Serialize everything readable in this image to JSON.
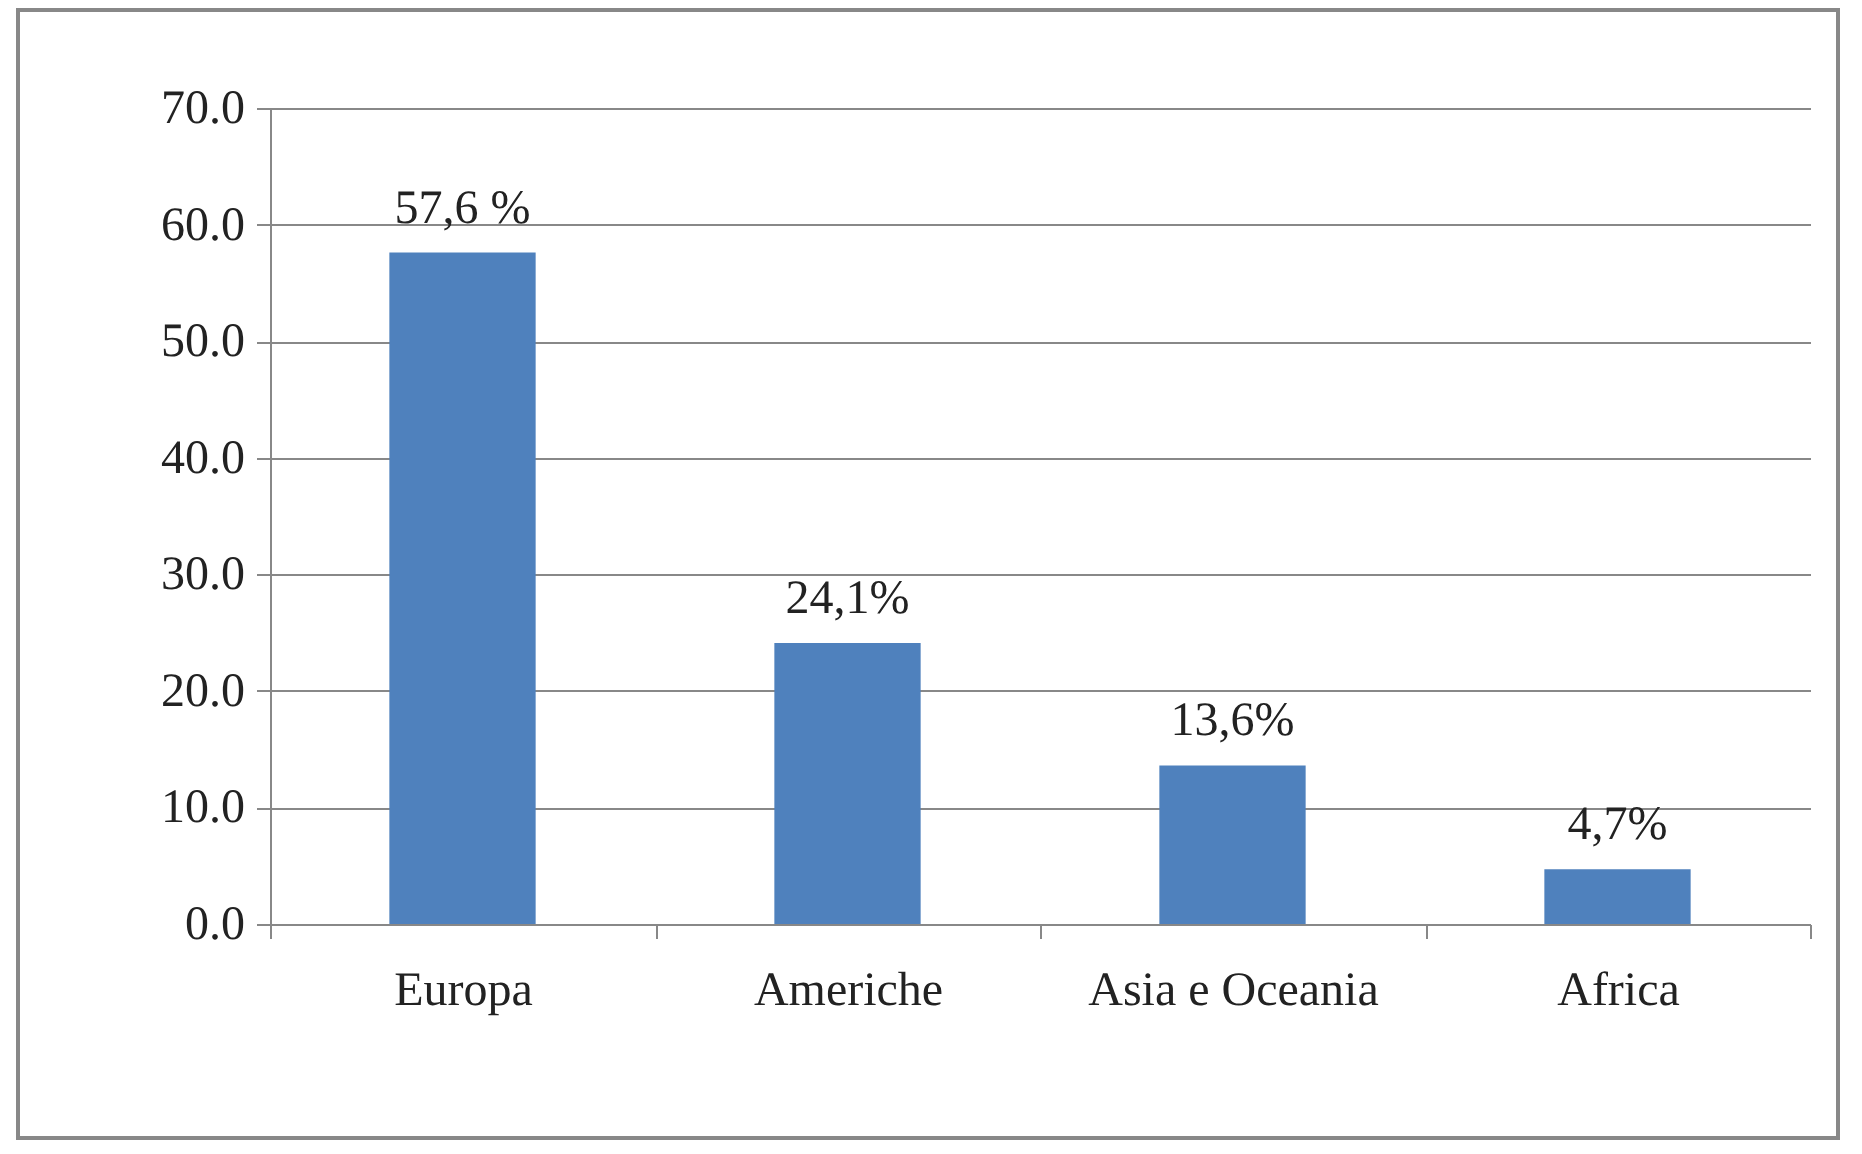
{
  "chart_data": {
    "type": "bar",
    "categories": [
      "Europa",
      "Americhe",
      "Asia e Oceania",
      "Africa"
    ],
    "values": [
      57.6,
      24.1,
      13.6,
      4.7
    ],
    "value_labels": [
      "57,6 %",
      "24,1%",
      "13,6%",
      "4,7%"
    ],
    "color": "#4f81bd",
    "ylim": [
      0,
      70
    ],
    "yticks": [
      {
        "value": 0,
        "label": "0.0"
      },
      {
        "value": 10,
        "label": "10.0"
      },
      {
        "value": 20,
        "label": "20.0"
      },
      {
        "value": 30,
        "label": "30.0"
      },
      {
        "value": 40,
        "label": "40.0"
      },
      {
        "value": 50,
        "label": "50.0"
      },
      {
        "value": 60,
        "label": "60.0"
      },
      {
        "value": 70,
        "label": "70.0"
      }
    ],
    "grid": "y"
  }
}
